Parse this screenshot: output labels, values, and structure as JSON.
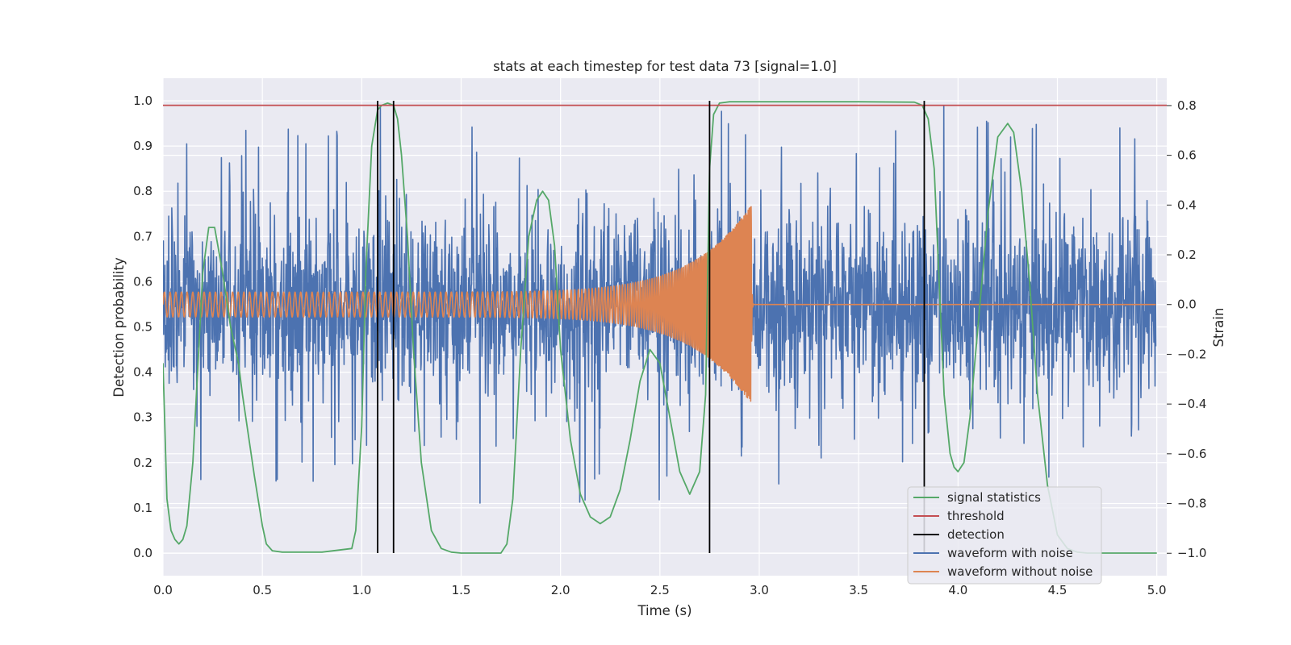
{
  "chart_data": {
    "type": "line",
    "title": "stats at each timestep for test data 73 [signal=1.0]",
    "xlabel": "Time (s)",
    "ylabel": "Detection probability",
    "y2label": "Strain",
    "xlim": [
      0.0,
      5.05
    ],
    "ylim": [
      -0.05,
      1.05
    ],
    "y2lim": [
      -1.09,
      0.91
    ],
    "xticks": [
      "0.0",
      "0.5",
      "1.0",
      "1.5",
      "2.0",
      "2.5",
      "3.0",
      "3.5",
      "4.0",
      "4.5",
      "5.0"
    ],
    "yticks": [
      "0.0",
      "0.1",
      "0.2",
      "0.3",
      "0.4",
      "0.5",
      "0.6",
      "0.7",
      "0.8",
      "0.9",
      "1.0"
    ],
    "y2ticks": [
      "−1.0",
      "−0.8",
      "−0.6",
      "−0.4",
      "−0.2",
      "0.0",
      "0.2",
      "0.4",
      "0.6",
      "0.8"
    ],
    "grid": true,
    "legend_position": "bottom-right",
    "colors": {
      "background": "#eaeaf2",
      "grid": "#ffffff",
      "signal": "#55a868",
      "threshold": "#c44e52",
      "detection": "#000000",
      "noisy": "#4c72b0",
      "clean": "#dd8452"
    },
    "threshold": 0.99,
    "detections": [
      1.08,
      1.16,
      2.75,
      3.83
    ],
    "merger_time": 2.96,
    "signal_statistics": {
      "x": [
        0.0,
        0.02,
        0.04,
        0.06,
        0.08,
        0.1,
        0.12,
        0.15,
        0.18,
        0.2,
        0.23,
        0.26,
        0.3,
        0.34,
        0.38,
        0.4,
        0.43,
        0.46,
        0.5,
        0.52,
        0.55,
        0.6,
        0.8,
        0.95,
        0.97,
        1.0,
        1.02,
        1.05,
        1.08,
        1.1,
        1.13,
        1.16,
        1.18,
        1.2,
        1.23,
        1.26,
        1.3,
        1.35,
        1.4,
        1.45,
        1.5,
        1.7,
        1.73,
        1.76,
        1.8,
        1.84,
        1.88,
        1.91,
        1.94,
        1.97,
        2.0,
        2.05,
        2.1,
        2.15,
        2.2,
        2.25,
        2.3,
        2.35,
        2.4,
        2.45,
        2.5,
        2.55,
        2.6,
        2.65,
        2.7,
        2.73,
        2.75,
        2.77,
        2.8,
        2.85,
        3.0,
        3.5,
        3.78,
        3.82,
        3.85,
        3.88,
        3.9,
        3.93,
        3.96,
        3.98,
        4.0,
        4.03,
        4.06,
        4.1,
        4.15,
        4.2,
        4.25,
        4.28,
        4.32,
        4.36,
        4.4,
        4.45,
        4.5,
        4.55,
        4.6,
        4.65,
        4.7,
        4.8,
        5.0
      ],
      "y": [
        0.42,
        0.12,
        0.05,
        0.03,
        0.02,
        0.03,
        0.06,
        0.2,
        0.45,
        0.62,
        0.72,
        0.72,
        0.62,
        0.5,
        0.42,
        0.35,
        0.26,
        0.17,
        0.06,
        0.02,
        0.005,
        0.002,
        0.002,
        0.01,
        0.05,
        0.28,
        0.62,
        0.9,
        0.98,
        0.99,
        0.995,
        0.99,
        0.96,
        0.88,
        0.7,
        0.45,
        0.2,
        0.05,
        0.01,
        0.002,
        0.0,
        0.0,
        0.02,
        0.12,
        0.45,
        0.7,
        0.78,
        0.8,
        0.78,
        0.68,
        0.45,
        0.25,
        0.13,
        0.08,
        0.065,
        0.08,
        0.14,
        0.25,
        0.38,
        0.45,
        0.42,
        0.3,
        0.18,
        0.13,
        0.18,
        0.35,
        0.85,
        0.97,
        0.995,
        0.998,
        0.998,
        0.998,
        0.997,
        0.99,
        0.96,
        0.85,
        0.65,
        0.35,
        0.22,
        0.19,
        0.18,
        0.2,
        0.3,
        0.5,
        0.75,
        0.92,
        0.95,
        0.93,
        0.8,
        0.6,
        0.35,
        0.15,
        0.04,
        0.01,
        0.002,
        0.0,
        0.0,
        0.0,
        0.0
      ]
    },
    "series": [
      {
        "name": "signal statistics",
        "axis": "left"
      },
      {
        "name": "threshold",
        "axis": "left"
      },
      {
        "name": "detection",
        "axis": "left"
      },
      {
        "name": "waveform with noise",
        "axis": "right",
        "typical_amplitude": 0.3,
        "spike_range": [
          -0.9,
          0.81
        ]
      },
      {
        "name": "waveform without noise",
        "axis": "right",
        "amplitude_start": 0.05,
        "amplitude_end": 0.4,
        "frequency_start_hz": 35,
        "frequency_end_hz": 200
      }
    ]
  }
}
